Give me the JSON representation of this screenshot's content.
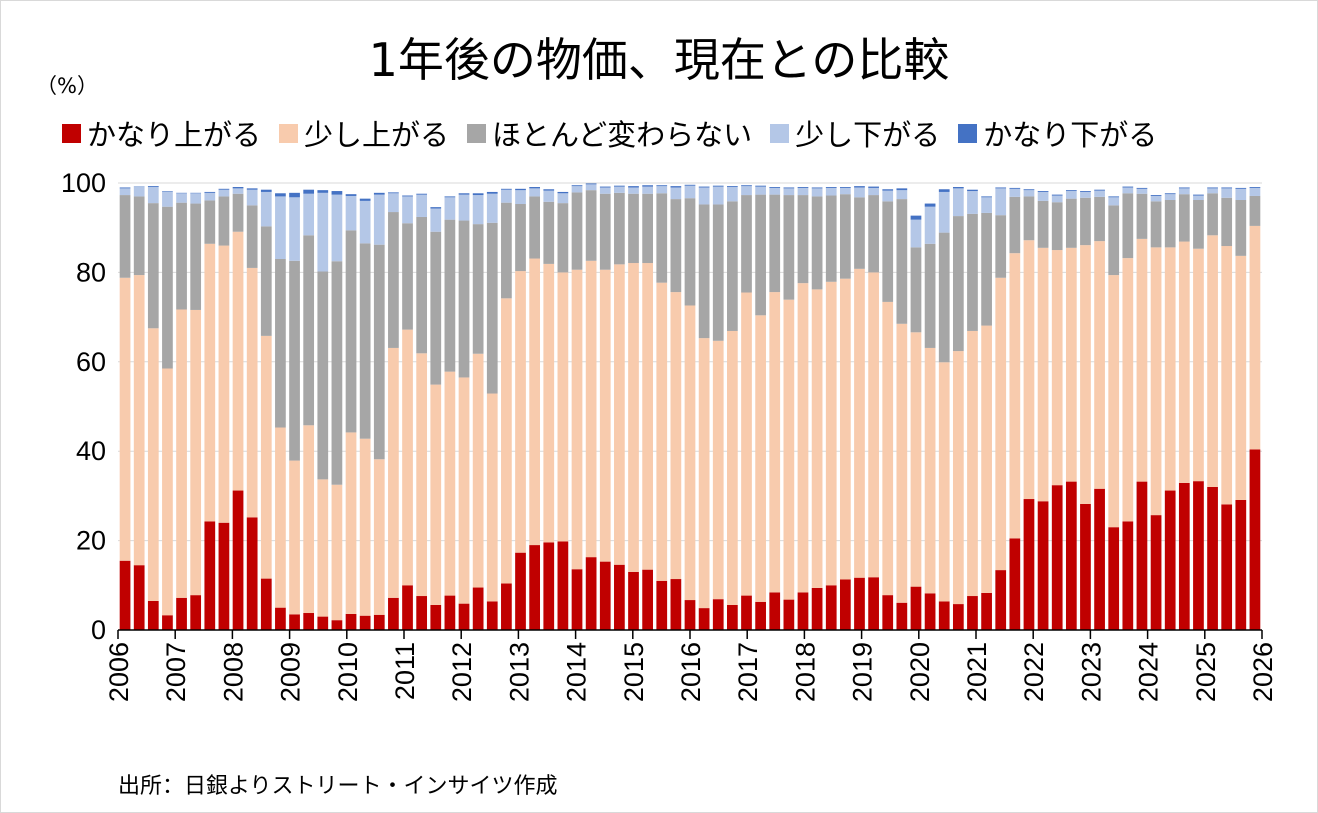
{
  "chart_data": {
    "type": "bar",
    "stacked": true,
    "title": "1年後の物価、現在との比較",
    "unit": "（%）",
    "ylim": [
      0,
      100
    ],
    "yticks": [
      0,
      20,
      40,
      60,
      80,
      100
    ],
    "xticks": [
      "2006",
      "2007",
      "2008",
      "2009",
      "2010",
      "2011",
      "2012",
      "2013",
      "2014",
      "2015",
      "2016",
      "2017",
      "2018",
      "2019",
      "2020",
      "2021",
      "2022",
      "2023",
      "2024",
      "2025",
      "2026"
    ],
    "grid": true,
    "legend_position": "top",
    "series": [
      {
        "name": "かなり上がる",
        "color": "#c00000",
        "values": [
          15.5,
          14.5,
          6.5,
          3.3,
          7.2,
          7.8,
          24.3,
          24.0,
          31.2,
          25.2,
          11.5,
          5.0,
          3.5,
          3.8,
          3.0,
          2.2,
          3.6,
          3.2,
          3.4,
          7.2,
          10.0,
          7.6,
          5.6,
          7.7,
          5.9,
          9.5,
          6.4,
          10.4,
          17.3,
          19.0,
          19.6,
          19.8,
          13.6,
          16.3,
          15.3,
          14.6,
          13.0,
          13.5,
          11.0,
          11.4,
          6.7,
          4.9,
          6.9,
          5.6,
          7.7,
          6.3,
          8.4,
          6.8,
          8.4,
          9.4,
          10.0,
          11.3,
          11.7,
          11.8,
          7.8,
          6.1,
          9.7,
          8.2,
          6.4,
          5.8,
          7.6,
          8.3,
          13.4,
          20.5,
          29.3,
          28.8,
          32.4,
          33.2,
          28.2,
          31.6,
          23.0,
          24.3,
          33.2,
          25.7,
          31.2,
          32.9,
          33.3,
          32.0,
          28.1,
          29.1,
          40.4
        ]
      },
      {
        "name": "少し上がる",
        "color": "#f8cbad",
        "values": [
          63.3,
          64.9,
          61.0,
          55.2,
          64.5,
          63.8,
          62.1,
          62.0,
          57.9,
          55.8,
          54.3,
          40.3,
          34.4,
          42.0,
          30.7,
          30.3,
          40.6,
          39.6,
          34.8,
          55.9,
          57.2,
          54.3,
          49.3,
          50.1,
          50.6,
          52.3,
          46.5,
          63.8,
          63.0,
          64.1,
          62.3,
          60.2,
          67.0,
          66.3,
          65.3,
          67.2,
          69.1,
          68.6,
          66.7,
          64.2,
          65.9,
          60.4,
          57.8,
          61.3,
          67.8,
          64.1,
          67.2,
          67.1,
          69.2,
          66.8,
          67.9,
          67.3,
          69.1,
          68.2,
          65.6,
          62.4,
          56.9,
          54.9,
          53.5,
          56.6,
          59.3,
          59.8,
          65.4,
          63.8,
          57.9,
          56.7,
          52.6,
          52.3,
          57.9,
          55.4,
          56.4,
          58.9,
          54.3,
          59.9,
          54.4,
          54.0,
          52.0,
          56.3,
          57.8,
          54.6,
          50.0
        ]
      },
      {
        "name": "ほとんど変わらない",
        "color": "#a6a6a6",
        "values": [
          18.5,
          17.6,
          28.0,
          36.2,
          23.9,
          23.8,
          9.7,
          11.0,
          8.5,
          14.0,
          24.5,
          37.7,
          44.7,
          42.5,
          46.5,
          50.0,
          45.2,
          43.7,
          48.0,
          30.4,
          23.8,
          30.5,
          34.2,
          34.0,
          35.1,
          29.0,
          38.2,
          21.4,
          15.0,
          13.9,
          13.9,
          15.5,
          17.3,
          15.8,
          17.0,
          16.0,
          15.5,
          15.5,
          20.0,
          20.8,
          24.0,
          29.9,
          30.5,
          29.0,
          21.8,
          27.0,
          21.8,
          23.4,
          19.7,
          20.8,
          19.3,
          18.9,
          16.0,
          17.3,
          22.5,
          27.9,
          19.0,
          23.3,
          29.0,
          30.2,
          26.2,
          25.2,
          14.0,
          12.6,
          9.8,
          10.5,
          10.7,
          11.0,
          10.6,
          9.9,
          15.6,
          14.5,
          10.1,
          10.3,
          10.6,
          10.6,
          10.9,
          9.4,
          10.8,
          12.5,
          6.7
        ]
      },
      {
        "name": "少し下がる",
        "color": "#b4c7e7",
        "values": [
          1.5,
          2.1,
          3.6,
          3.4,
          2.1,
          2.3,
          1.7,
          1.5,
          1.2,
          3.5,
          7.7,
          14.0,
          14.2,
          9.3,
          17.6,
          14.9,
          7.7,
          9.5,
          11.2,
          4.2,
          6.0,
          5.0,
          5.2,
          5.0,
          5.8,
          6.5,
          6.5,
          2.9,
          3.1,
          1.8,
          2.5,
          2.2,
          1.4,
          1.3,
          1.4,
          1.4,
          1.4,
          1.6,
          1.6,
          2.6,
          2.8,
          3.8,
          4.0,
          3.2,
          2.0,
          1.8,
          1.5,
          1.5,
          1.6,
          1.8,
          1.7,
          1.4,
          2.2,
          1.6,
          2.4,
          2.0,
          6.2,
          8.3,
          9.1,
          6.2,
          5.1,
          3.5,
          6.0,
          1.8,
          1.4,
          2.0,
          1.5,
          1.7,
          1.3,
          1.4,
          1.8,
          1.3,
          1.1,
          1.2,
          1.3,
          1.3,
          1.0,
          1.1,
          2.1,
          2.5,
          1.8
        ]
      },
      {
        "name": "かなり下がる",
        "color": "#4472c4",
        "values": [
          0.2,
          0.1,
          0.2,
          0.1,
          0.1,
          0.1,
          0.2,
          0.2,
          0.3,
          0.3,
          0.5,
          0.7,
          1.0,
          0.9,
          0.6,
          0.8,
          0.4,
          0.5,
          0.4,
          0.2,
          0.2,
          0.2,
          0.3,
          0.2,
          0.3,
          0.4,
          0.4,
          0.2,
          0.3,
          0.3,
          0.3,
          0.3,
          0.2,
          0.2,
          0.2,
          0.2,
          0.3,
          0.3,
          0.2,
          0.3,
          0.2,
          0.2,
          0.2,
          0.2,
          0.2,
          0.2,
          0.2,
          0.2,
          0.2,
          0.2,
          0.2,
          0.2,
          0.3,
          0.3,
          0.3,
          0.4,
          0.9,
          0.7,
          0.6,
          0.3,
          0.3,
          0.2,
          0.2,
          0.2,
          0.2,
          0.2,
          0.2,
          0.2,
          0.2,
          0.2,
          0.2,
          0.2,
          0.2,
          0.2,
          0.2,
          0.2,
          0.2,
          0.2,
          0.2,
          0.2,
          0.2
        ]
      }
    ]
  },
  "source_note": "出所：日銀よりストリート・インサイツ作成"
}
